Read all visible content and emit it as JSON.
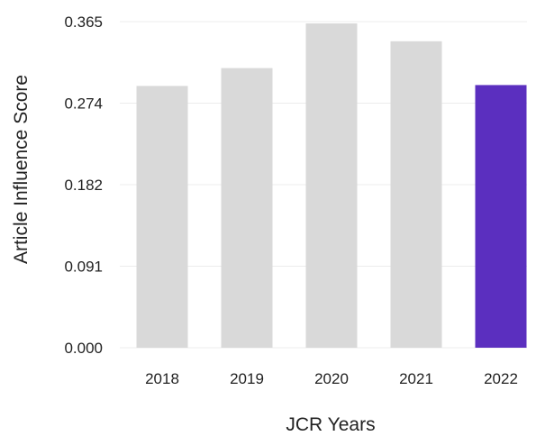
{
  "chart_data": {
    "type": "bar",
    "xlabel": "JCR Years",
    "ylabel": "Article Influence Score",
    "categories": [
      "2018",
      "2019",
      "2020",
      "2021",
      "2022"
    ],
    "values": [
      0.293,
      0.313,
      0.363,
      0.343,
      0.294
    ],
    "ylim": [
      0,
      0.365
    ],
    "yticks": [
      "0.000",
      "0.091",
      "0.182",
      "0.274",
      "0.365"
    ],
    "grid": true,
    "colors": {
      "default_bar": "#d9d9d9",
      "highlight_bar": "#5b2fbf",
      "highlight_category": "2022"
    }
  }
}
